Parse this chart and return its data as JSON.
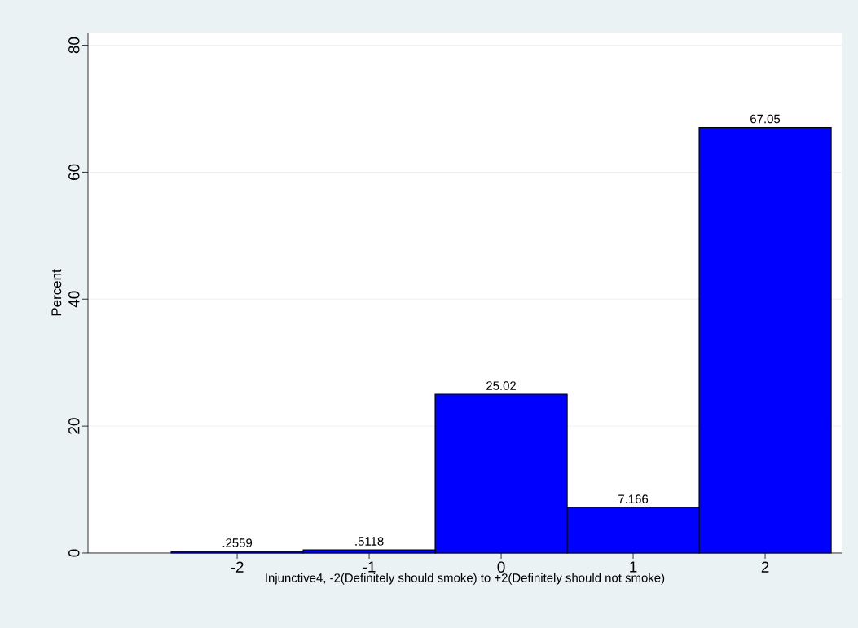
{
  "chart_data": {
    "type": "histogram",
    "xlabel": "Injunctive4, -2(Definitely should smoke) to +2(Definitely should not smoke)",
    "ylabel": "Percent",
    "bins": [
      -2.5,
      -1.5,
      -0.5,
      0.5,
      1.5,
      2.5
    ],
    "values": [
      0.2559,
      0.5118,
      25.02,
      7.166,
      67.05
    ],
    "value_labels": [
      ".2559",
      ".5118",
      "25.02",
      "7.166",
      "67.05"
    ],
    "color": "#0000ff",
    "xlim": [
      -3.13,
      2.58
    ],
    "ylim": [
      0,
      82
    ],
    "xticks": [
      -2,
      -1,
      0,
      1,
      2
    ],
    "yticks": [
      0,
      20,
      40,
      60,
      80
    ],
    "grid": "y"
  }
}
